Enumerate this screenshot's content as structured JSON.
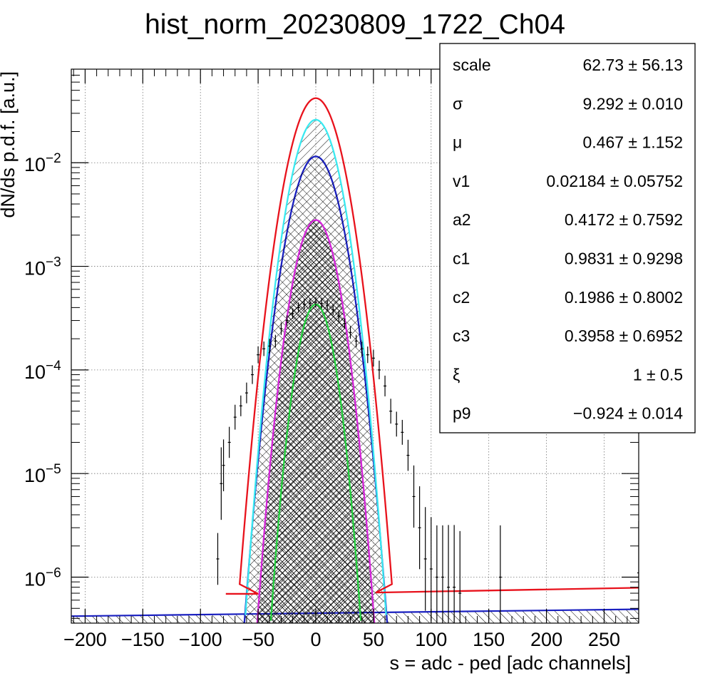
{
  "chart_data": {
    "type": "histogram",
    "title": "hist_norm_20230809_1722_Ch04",
    "xlabel": "s = adc - ped [adc channels]",
    "ylabel": "dN/ds p.d.f. [a.u.]",
    "xlim": [
      -212,
      280
    ],
    "ylim": [
      3.6e-07,
      0.08
    ],
    "yscale": "log",
    "grid": true,
    "x_ticks": [
      -200,
      -150,
      -100,
      -50,
      0,
      50,
      100,
      150,
      200,
      250
    ],
    "x_tick_labels": [
      "−200",
      "−150",
      "−100",
      "−50",
      "0",
      "50",
      "100",
      "150",
      "200",
      "250"
    ],
    "y_ticks": [
      1e-06,
      1e-05,
      0.0001,
      0.001,
      0.01
    ],
    "y_tick_labels": [
      {
        "base": "10",
        "exp": "−6"
      },
      {
        "base": "10",
        "exp": "−5"
      },
      {
        "base": "10",
        "exp": "−4"
      },
      {
        "base": "10",
        "exp": "−3"
      },
      {
        "base": "10",
        "exp": "−2"
      }
    ],
    "data_points": {
      "name": "data",
      "color": "#000000",
      "x": [
        -85,
        -82,
        -80,
        -75,
        -70,
        -65,
        -60,
        -55,
        -50,
        -45,
        -40,
        -35,
        -30,
        -25,
        -20,
        -15,
        -10,
        -5,
        0,
        5,
        10,
        15,
        20,
        25,
        30,
        35,
        40,
        45,
        50,
        55,
        60,
        65,
        70,
        75,
        80,
        85,
        90,
        95,
        100,
        105,
        110,
        115,
        120,
        125,
        160,
        280
      ],
      "y": [
        1.5e-06,
        8e-06,
        1.2e-05,
        2e-05,
        3.5e-05,
        4.5e-05,
        6e-05,
        9e-05,
        0.00014,
        0.00016,
        0.00017,
        0.00019,
        0.00025,
        0.0003,
        0.00035,
        0.0004,
        0.00043,
        0.00044,
        0.00045,
        0.00044,
        0.00042,
        0.00038,
        0.00033,
        0.00028,
        0.00023,
        0.00019,
        0.00016,
        0.00014,
        0.00013,
        0.0001,
        7e-05,
        4e-05,
        3e-05,
        2.5e-05,
        1.5e-05,
        6e-06,
        3e-06,
        1.5e-06,
        1.2e-06,
        1e-06,
        1e-06,
        8e-07,
        8e-07,
        7e-07,
        1e-06,
        1.1e-06
      ],
      "err": [
        0.25,
        0.35,
        0.25,
        0.15,
        0.12,
        0.1,
        0.1,
        0.09,
        0.08,
        0.07,
        0.07,
        0.06,
        0.06,
        0.05,
        0.05,
        0.05,
        0.05,
        0.05,
        0.05,
        0.05,
        0.05,
        0.05,
        0.05,
        0.05,
        0.06,
        0.06,
        0.07,
        0.08,
        0.08,
        0.09,
        0.1,
        0.12,
        0.12,
        0.12,
        0.15,
        0.3,
        0.4,
        0.5,
        0.5,
        0.5,
        0.5,
        0.6,
        0.6,
        0.6,
        0.5,
        0.5
      ]
    },
    "curves": [
      {
        "name": "total",
        "color": "#e8121c",
        "peak": 0.042,
        "sigma": 14.2,
        "mean": 0,
        "baseline_x": [
          -78,
          280
        ],
        "baseline_y": [
          6.9e-07,
          7.9e-07
        ],
        "baseline_step_x": 52,
        "baseline_step_y": 7.1e-07,
        "fill": false
      },
      {
        "name": "cyan",
        "color": "#39e9f0",
        "peak": 0.026,
        "sigma": 13.0,
        "mean": 0,
        "fill": true,
        "hatch": "diag-right"
      },
      {
        "name": "blue",
        "color": "#1a20c0",
        "peak": 0.0115,
        "sigma": 13.6,
        "mean": 0,
        "fill": true,
        "hatch": "diag-left",
        "baseline_x": [
          -212,
          280
        ],
        "baseline_y": [
          4.2e-07,
          4.9e-07
        ]
      },
      {
        "name": "magenta",
        "color": "#d425d9",
        "peak": 0.0028,
        "sigma": 12.0,
        "mean": 0,
        "fill": true,
        "hatch": "cross"
      },
      {
        "name": "green",
        "color": "#22cf3c",
        "peak": 0.00043,
        "sigma": 10.4,
        "mean": 0,
        "fill": true,
        "hatch": "diag-right"
      }
    ]
  },
  "stats_box": {
    "rows": [
      {
        "label": "scale",
        "value": "62.73 ± 56.13"
      },
      {
        "label": "σ",
        "value": "9.292 ± 0.010"
      },
      {
        "label": "μ",
        "value": "0.467 ± 1.152"
      },
      {
        "label": "v1",
        "value": "0.02184 ± 0.05752"
      },
      {
        "label": "a2",
        "value": "0.4172 ± 0.7592"
      },
      {
        "label": "c1",
        "value": "0.9831 ± 0.9298"
      },
      {
        "label": "c2",
        "value": "0.1986 ± 0.8002"
      },
      {
        "label": "c3",
        "value": "0.3958 ± 0.6952"
      },
      {
        "label": "ξ",
        "value": "1 ± 0.5"
      },
      {
        "label": "p9",
        "value": "−0.924 ± 0.014"
      }
    ]
  }
}
